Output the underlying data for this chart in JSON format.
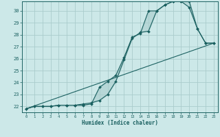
{
  "title": "",
  "xlabel": "Humidex (Indice chaleur)",
  "ylabel": "",
  "xlim": [
    -0.5,
    23.5
  ],
  "ylim": [
    21.5,
    30.8
  ],
  "yticks": [
    22,
    23,
    24,
    25,
    26,
    27,
    28,
    29,
    30
  ],
  "xticks": [
    0,
    1,
    2,
    3,
    4,
    5,
    6,
    7,
    8,
    9,
    10,
    11,
    12,
    13,
    14,
    15,
    16,
    17,
    18,
    19,
    20,
    21,
    22,
    23
  ],
  "bg_color": "#cce8e8",
  "grid_color": "#aacccc",
  "line_color": "#1a6060",
  "line1_x": [
    0,
    1,
    2,
    3,
    4,
    5,
    6,
    7,
    8,
    9,
    10,
    11,
    12,
    13,
    14,
    15,
    16,
    17,
    18,
    19,
    20,
    21,
    22,
    23
  ],
  "line1_y": [
    21.8,
    22.0,
    22.0,
    22.0,
    22.1,
    22.1,
    22.1,
    22.1,
    22.2,
    23.6,
    24.1,
    24.6,
    26.1,
    27.8,
    28.1,
    30.0,
    30.0,
    30.5,
    30.8,
    30.8,
    30.3,
    28.5,
    27.3,
    27.3
  ],
  "line2_x": [
    0,
    1,
    2,
    3,
    4,
    5,
    6,
    7,
    8,
    9,
    10,
    11,
    12,
    13,
    14,
    15,
    16,
    17,
    18,
    19,
    20,
    21,
    22,
    23
  ],
  "line2_y": [
    21.8,
    22.0,
    22.0,
    22.0,
    22.1,
    22.1,
    22.1,
    22.2,
    22.3,
    22.5,
    23.0,
    24.1,
    25.9,
    27.7,
    28.2,
    28.3,
    30.0,
    30.5,
    30.8,
    30.8,
    30.8,
    28.5,
    27.3,
    27.3
  ],
  "line3_x": [
    0,
    23
  ],
  "line3_y": [
    21.8,
    27.3
  ],
  "marker": "D",
  "marker_size": 2.0,
  "line_width": 0.8
}
